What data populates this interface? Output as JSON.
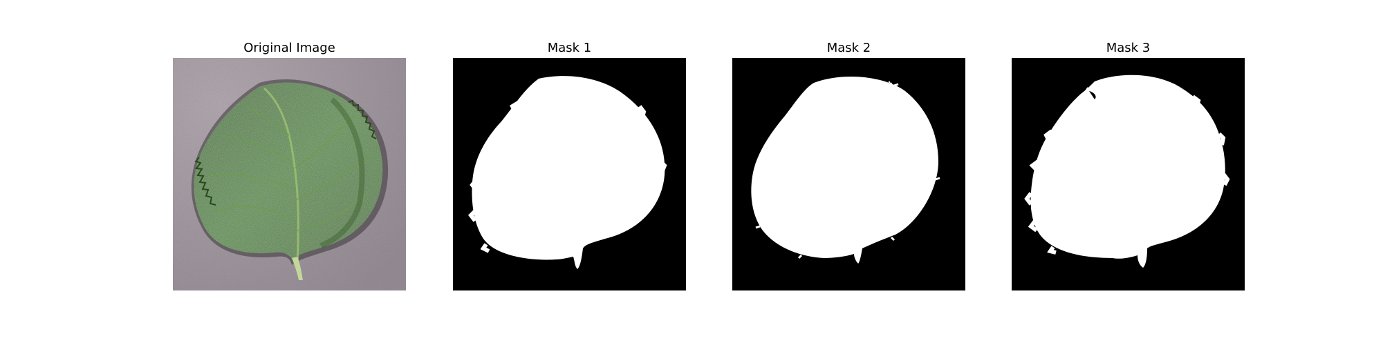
{
  "figure": {
    "panels": [
      {
        "title": "Original Image",
        "kind": "photo",
        "subject": "leaf-photo"
      },
      {
        "title": "Mask 1",
        "kind": "mask"
      },
      {
        "title": "Mask 2",
        "kind": "mask"
      },
      {
        "title": "Mask 3",
        "kind": "mask"
      }
    ]
  },
  "colors": {
    "background": "#ffffff",
    "mask_background": "#000000",
    "mask_foreground": "#ffffff",
    "leaf_dark": "#2f5a22",
    "leaf_mid": "#4d8038",
    "leaf_light": "#7fb05a",
    "photo_backdrop": "#a79ea6",
    "stem": "#b9cf8a"
  }
}
